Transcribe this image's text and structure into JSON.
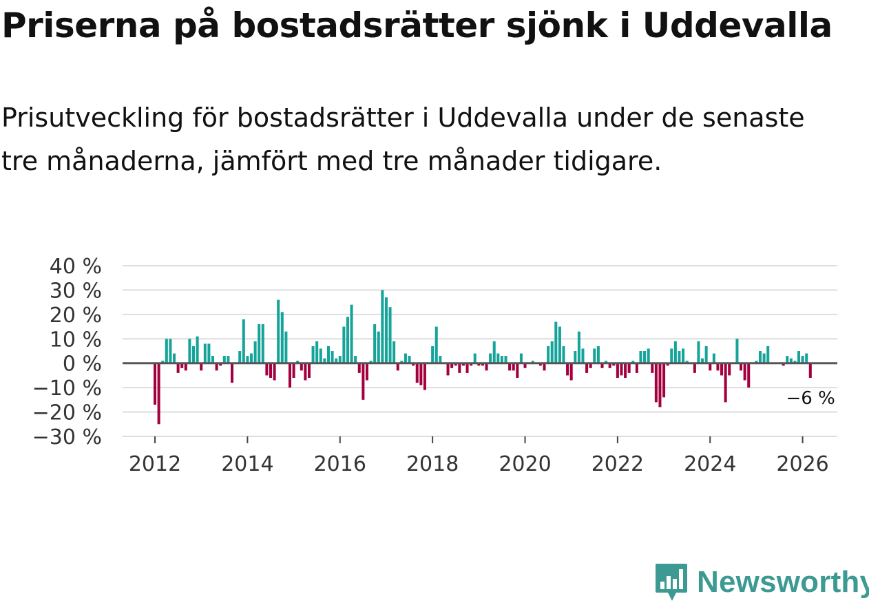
{
  "title": "Priserna på bostadsrätter sjönk i Uddevalla",
  "subtitle": "Prisutveckling för bostadsrätter i Uddevalla under de senaste tre månaderna, jämfört med tre månader tidigare.",
  "colors": {
    "positive": "#15a39a",
    "negative": "#a3003f",
    "zero_line": "#555555",
    "grid": "#dddddd"
  },
  "brand": {
    "name": "Newsworthy",
    "icon": "bar-chart-speech-bubble-icon",
    "color": "#3d9a93"
  },
  "chart_data": {
    "type": "bar",
    "title": "Prisutveckling för bostadsrätter i Uddevalla",
    "xlabel": "",
    "ylabel": "",
    "unit": "%",
    "ylim": [
      -30,
      40
    ],
    "xlim": [
      2011.3,
      2026.75
    ],
    "y_ticks": [
      40,
      30,
      20,
      10,
      0,
      -10,
      -20,
      -30
    ],
    "y_tick_labels": [
      "40 %",
      "30 %",
      "20 %",
      "10 %",
      "0 %",
      "−10 %",
      "−20 %",
      "−30 %"
    ],
    "x_ticks": [
      2012,
      2014,
      2016,
      2018,
      2020,
      2022,
      2024,
      2026
    ],
    "x_tick_labels": [
      "2012",
      "2014",
      "2016",
      "2018",
      "2020",
      "2022",
      "2024",
      "2026"
    ],
    "start": {
      "year": 2012,
      "month": 1
    },
    "end_label": "−6 %",
    "values": [
      -17,
      -25,
      1,
      10,
      10,
      4,
      -4,
      -2,
      -3,
      10,
      7,
      11,
      -3,
      8,
      8,
      3,
      -3,
      -1,
      3,
      3,
      -8,
      0,
      5,
      18,
      3,
      4,
      9,
      16,
      16,
      -5,
      -6,
      -7,
      26,
      21,
      13,
      -10,
      -6,
      1,
      -3,
      -7,
      -6,
      7,
      9,
      6,
      2,
      7,
      5,
      2,
      3,
      15,
      19,
      24,
      3,
      -4,
      -15,
      -7,
      1,
      16,
      13,
      30,
      27,
      23,
      9,
      -3,
      1,
      4,
      3,
      -1,
      -8,
      -9,
      -11,
      0,
      7,
      15,
      3,
      0,
      -5,
      -2,
      -1,
      -4,
      -1,
      -4,
      -1,
      4,
      -1,
      -1,
      -3,
      4,
      9,
      4,
      3,
      3,
      -3,
      -3,
      -6,
      4,
      -2,
      0,
      1,
      0,
      -1,
      -3,
      7,
      9,
      17,
      15,
      7,
      -5,
      -7,
      5,
      13,
      6,
      -4,
      -2,
      6,
      7,
      -2,
      1,
      -2,
      -1,
      -6,
      -5,
      -6,
      -4,
      1,
      -4,
      5,
      5,
      6,
      -4,
      -16,
      -18,
      -14,
      -1,
      6,
      9,
      5,
      6,
      1,
      0,
      -4,
      9,
      2,
      7,
      -3,
      4,
      -3,
      -5,
      -16,
      -5,
      0,
      10,
      -3,
      -7,
      -10,
      0,
      1,
      5,
      4,
      7,
      0,
      0,
      0,
      -1,
      3,
      2,
      1,
      5,
      3,
      4,
      -6
    ]
  }
}
